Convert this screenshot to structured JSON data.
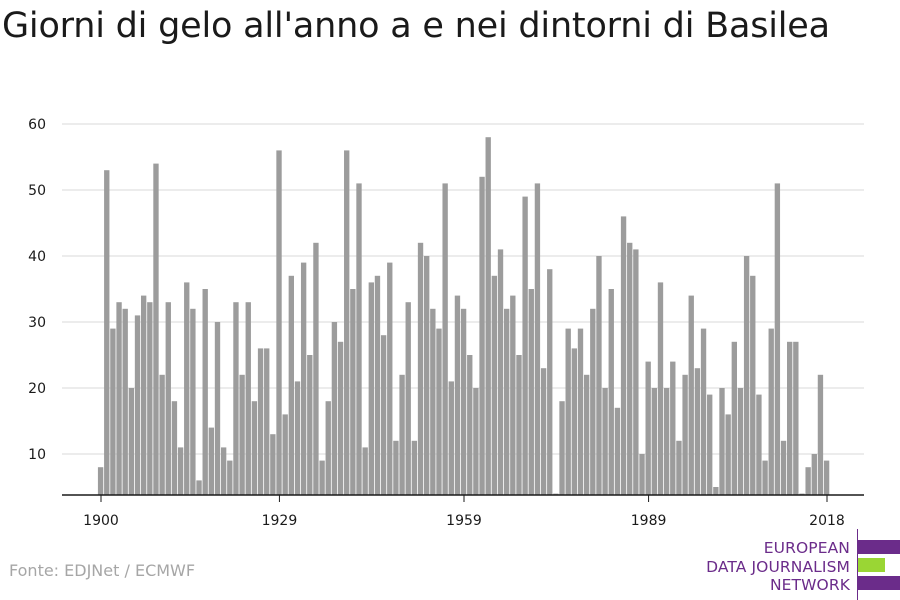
{
  "title": "Giorni di gelo all'anno a e nei dintorni di Basilea",
  "source": "Fonte: EDJNet / ECMWF",
  "logo": {
    "lines": [
      "EUROPEAN",
      "DATA JOURNALISM",
      "NETWORK"
    ],
    "colors": {
      "purple": "#6b2c8a",
      "green": "#9ad634"
    }
  },
  "colors": {
    "bar": "#9c9c9c",
    "grid": "#d9d9d9",
    "axis": "#1a1a1a",
    "text": "#1a1a1a"
  },
  "chart_data": {
    "type": "bar",
    "title": "Giorni di gelo all'anno a e nei dintorni di Basilea",
    "xlabel": "",
    "ylabel": "",
    "x_start": 1900,
    "x_end": 2021,
    "xticks": [
      1900,
      1929,
      1959,
      1989,
      2018
    ],
    "yticks": [
      10,
      20,
      30,
      40,
      50,
      60
    ],
    "ylim": [
      3.5,
      62
    ],
    "grid": true,
    "values": [
      8,
      53,
      29,
      33,
      32,
      20,
      31,
      34,
      33,
      54,
      22,
      33,
      18,
      11,
      36,
      32,
      6,
      35,
      14,
      30,
      11,
      9,
      33,
      22,
      33,
      18,
      26,
      26,
      13,
      56,
      16,
      37,
      21,
      39,
      25,
      42,
      9,
      18,
      30,
      27,
      56,
      35,
      51,
      11,
      36,
      37,
      28,
      39,
      12,
      22,
      33,
      12,
      42,
      40,
      32,
      29,
      51,
      21,
      34,
      32,
      25,
      20,
      52,
      58,
      37,
      41,
      32,
      34,
      25,
      49,
      35,
      51,
      23,
      38,
      4,
      18,
      29,
      26,
      29,
      22,
      32,
      40,
      20,
      35,
      17,
      46,
      42,
      41,
      10,
      24,
      20,
      36,
      20,
      24,
      12,
      22,
      34,
      23,
      29,
      19,
      5,
      20,
      16,
      27,
      20,
      40,
      37,
      19,
      9,
      29,
      51,
      12,
      27,
      27,
      4,
      8,
      10,
      22,
      9
    ]
  }
}
